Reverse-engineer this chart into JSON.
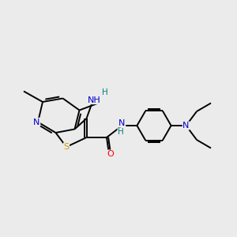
{
  "bg_color": "#ebebeb",
  "atom_colors": {
    "C": "#000000",
    "N": "#0000cd",
    "S": "#c8a000",
    "O": "#ff0000",
    "H": "#008080"
  },
  "bond_color": "#000000",
  "bond_width": 1.4,
  "figsize": [
    3.0,
    3.0
  ],
  "dpi": 100
}
